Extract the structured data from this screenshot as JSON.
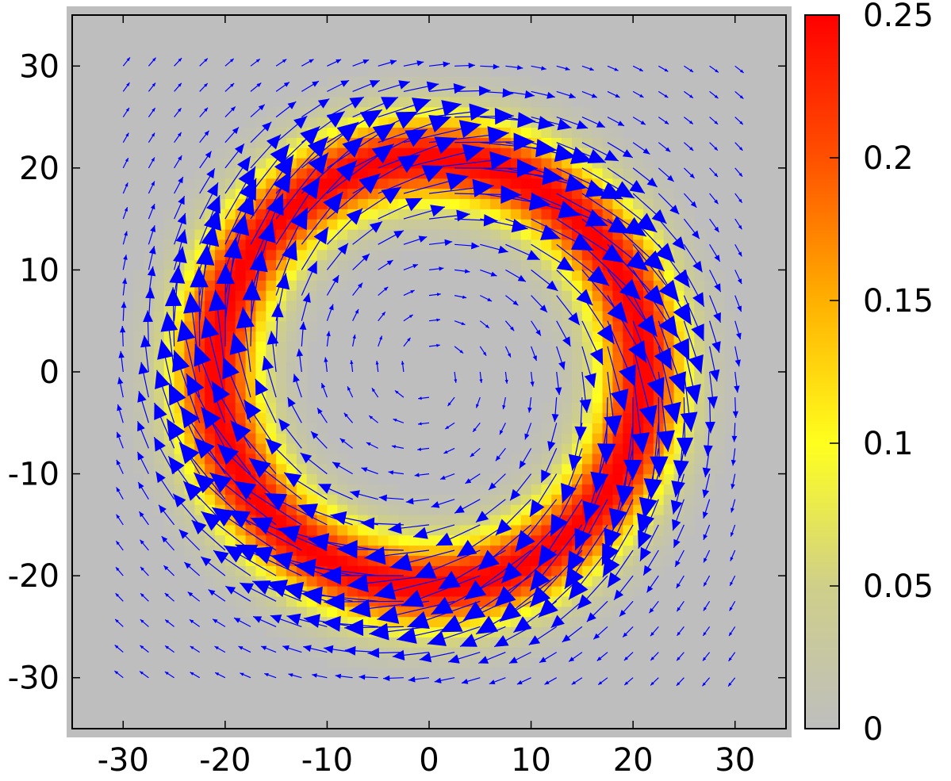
{
  "chart_data": {
    "type": "heatmap",
    "subtype": "vector-field-over-heatmap",
    "title": "",
    "xlabel": "",
    "ylabel": "",
    "xlim": [
      -35,
      35
    ],
    "ylim": [
      -35,
      35
    ],
    "x_ticks": [
      "-30",
      "-20",
      "-10",
      "0",
      "10",
      "20",
      "30"
    ],
    "x_tick_values": [
      -30,
      -20,
      -10,
      0,
      10,
      20,
      30
    ],
    "y_ticks": [
      "30",
      "20",
      "10",
      "0",
      "-10",
      "-20",
      "-30"
    ],
    "y_tick_values": [
      30,
      20,
      10,
      0,
      -10,
      -20,
      -30
    ],
    "heatmap": {
      "description": "ring-shaped density centered at origin",
      "center": [
        0,
        0
      ],
      "ring_radius": 21,
      "ring_width_sigma": 3.2,
      "peak_value": 0.25,
      "grid_step": 1.0
    },
    "colorbar": {
      "range": [
        0,
        0.25
      ],
      "ticks": [
        "0",
        "0.05",
        "0.1",
        "0.15",
        "0.2",
        "0.25"
      ],
      "tick_values": [
        0,
        0.05,
        0.1,
        0.15,
        0.2,
        0.25
      ],
      "colors": [
        "#bebebe",
        "#cfcf8a",
        "#ffff1e",
        "#ffb000",
        "#ff5000",
        "#ff0000"
      ]
    },
    "vector_field": {
      "description": "clockwise vortex, largest magnitude on the ring",
      "rotation": "clockwise",
      "grid_step": 5,
      "grid_range": [
        -30,
        30
      ],
      "color": "#0000ff"
    },
    "background_color": "#bebebe"
  }
}
